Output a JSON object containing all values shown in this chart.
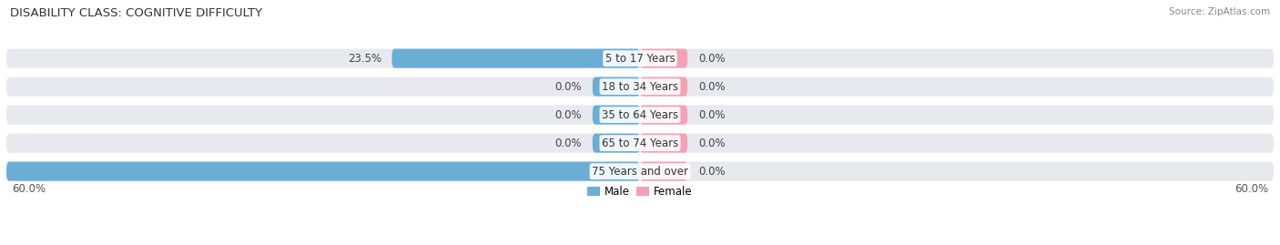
{
  "title": "DISABILITY CLASS: COGNITIVE DIFFICULTY",
  "source": "Source: ZipAtlas.com",
  "categories": [
    "5 to 17 Years",
    "18 to 34 Years",
    "35 to 64 Years",
    "65 to 74 Years",
    "75 Years and over"
  ],
  "male_values": [
    23.5,
    0.0,
    0.0,
    0.0,
    60.0
  ],
  "female_values": [
    0.0,
    0.0,
    0.0,
    0.0,
    0.0
  ],
  "male_color": "#6aaed6",
  "female_color": "#f4a0b5",
  "bar_bg_color": "#e8e8ef",
  "bar_bg_color2": "#f0f0f5",
  "bar_height": 0.68,
  "x_max": 60.0,
  "title_fontsize": 9.5,
  "label_fontsize": 8.5,
  "tick_fontsize": 8.5,
  "fig_bg_color": "#ffffff",
  "center_label_color": "#333333",
  "value_label_color": "#444444",
  "female_stub": 4.5,
  "male_stub": 4.5
}
